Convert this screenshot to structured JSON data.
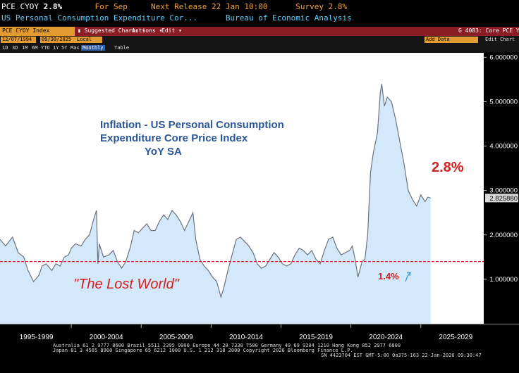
{
  "ticker": {
    "symbol": "PCE CYOY",
    "value": "2.8%",
    "for_label": "For Sep",
    "next_release_label": "Next Release 22 Jan 10:00",
    "survey_label": "Survey 2.8%"
  },
  "subtitle": {
    "description": "US Personal Consumption Expenditure Cor...",
    "source": "Bureau of Economic Analysis"
  },
  "toolbar": {
    "field": "PCE CYOY Index",
    "suggested_charts": "Suggested Charts",
    "actions": "Actions",
    "edit": "Edit",
    "chart_id": "G 4083: Core PCE YoY"
  },
  "range": {
    "start_date": "12/07/1994",
    "end_date": "09/30/2025",
    "currency": "Local CCY",
    "add_data": "Add Data",
    "edit_chart": "Edit Chart"
  },
  "periods": [
    "1D",
    "3D",
    "1M",
    "6M",
    "YTD",
    "1Y",
    "5Y",
    "Max"
  ],
  "frequency": "Monthly",
  "table_label": "Table",
  "chart_data": {
    "type": "area",
    "title_lines": [
      "Inflation - US Personal Consumption",
      "Expenditure Core Price Index",
      "YoY SA"
    ],
    "annotations": {
      "current_value_label": "2.8%",
      "reference_value_label": "1.4%",
      "lost_world_label": "\"The Lost World\""
    },
    "reference_line": 1.4,
    "last_value_label": "2.825880",
    "ylim": [
      0,
      6.1
    ],
    "yticks": [
      "6.000000",
      "5.000000",
      "4.000000",
      "3.000000",
      "2.000000",
      "1.000000"
    ],
    "ytick_values": [
      6,
      5,
      4,
      3,
      2,
      1
    ],
    "xlim": [
      1994.9,
      2029.5
    ],
    "xtick_labels": [
      "1995-1999",
      "2000-2004",
      "2005-2009",
      "2010-2014",
      "2015-2019",
      "2020-2024",
      "2025-2029"
    ],
    "xtick_centers": [
      1997.5,
      2002.5,
      2007.5,
      2012.5,
      2017.5,
      2022.5,
      2027.5
    ],
    "series": [
      {
        "x": [
          1994.9,
          1995.3,
          1995.8,
          1996.2,
          1996.6,
          1996.9,
          1997.3,
          1997.7,
          1997.9,
          1998.2,
          1998.6,
          1998.9,
          1999.2,
          1999.5,
          1999.8,
          2000.0,
          2000.3,
          2000.7,
          2001.0,
          2001.3,
          2001.6,
          2001.8,
          2001.9,
          2002.0,
          2002.3,
          2002.7,
          2003.0,
          2003.3,
          2003.6,
          2003.9,
          2004.2,
          2004.5,
          2004.8,
          2005.1,
          2005.4,
          2005.7,
          2006.0,
          2006.3,
          2006.6,
          2006.9,
          2007.2,
          2007.5,
          2007.8,
          2008.1,
          2008.4,
          2008.7,
          2008.9,
          2009.2,
          2009.5,
          2009.8,
          2010.1,
          2010.4,
          2010.7,
          2010.9,
          2011.2,
          2011.5,
          2011.8,
          2012.1,
          2012.4,
          2012.7,
          2013.0,
          2013.3,
          2013.6,
          2013.9,
          2014.2,
          2014.5,
          2014.8,
          2015.1,
          2015.4,
          2015.7,
          2016.0,
          2016.3,
          2016.6,
          2016.9,
          2017.2,
          2017.5,
          2017.8,
          2018.1,
          2018.4,
          2018.7,
          2019.0,
          2019.3,
          2019.6,
          2019.9,
          2020.1,
          2020.3,
          2020.5,
          2020.8,
          2021.0,
          2021.2,
          2021.4,
          2021.6,
          2021.9,
          2022.1,
          2022.2,
          2022.4,
          2022.6,
          2022.9,
          2023.2,
          2023.5,
          2023.8,
          2024.1,
          2024.4,
          2024.7,
          2025.0,
          2025.3,
          2025.5,
          2025.7
        ],
        "values": [
          1.9,
          1.75,
          1.95,
          1.6,
          1.5,
          1.2,
          0.95,
          1.1,
          1.3,
          1.35,
          1.2,
          1.35,
          1.3,
          1.5,
          1.55,
          1.7,
          1.8,
          1.75,
          1.9,
          2.0,
          2.35,
          2.55,
          1.35,
          1.8,
          1.5,
          1.55,
          1.65,
          1.4,
          1.25,
          1.4,
          1.7,
          2.1,
          2.05,
          2.15,
          2.25,
          2.1,
          2.1,
          2.3,
          2.45,
          2.35,
          2.55,
          2.45,
          2.3,
          2.1,
          2.3,
          2.5,
          1.9,
          1.45,
          1.3,
          1.2,
          1.05,
          0.95,
          0.6,
          0.8,
          1.2,
          1.55,
          1.9,
          1.95,
          1.85,
          1.75,
          1.6,
          1.35,
          1.25,
          1.3,
          1.45,
          1.6,
          1.5,
          1.35,
          1.3,
          1.35,
          1.55,
          1.7,
          1.65,
          1.55,
          1.65,
          1.45,
          1.35,
          1.65,
          1.9,
          1.95,
          1.7,
          1.55,
          1.6,
          1.65,
          1.75,
          1.45,
          1.05,
          1.4,
          1.45,
          2.0,
          3.4,
          3.85,
          4.3,
          5.2,
          5.4,
          4.9,
          5.1,
          5.0,
          4.6,
          4.1,
          3.6,
          3.0,
          2.8,
          2.65,
          2.9,
          2.75,
          2.85,
          2.83
        ]
      }
    ]
  },
  "footer": {
    "line1": "Australia 61 2 9777 8600  Brazil 5511 2395 9000  Europe 44 20 7330 7500  Germany 49 69 9204 1210  Hong Kong 852 2977 6000",
    "line2": "Japan 81 3 4565 8900           Singapore 65 6212 1000      U.S. 1 212 318 2000            Copyright 2026 Bloomberg Finance L.P.",
    "line3": "SN 4423704 EST  GMT-5:00 0a375-163 22-Jan-2026 09:30:47"
  },
  "colors": {
    "line": "#6b7380",
    "fill": "#d3e8fa",
    "reference": "#d42020",
    "title": "#2b5797",
    "accent": "#e39a30",
    "bar": "#8a1c24"
  }
}
